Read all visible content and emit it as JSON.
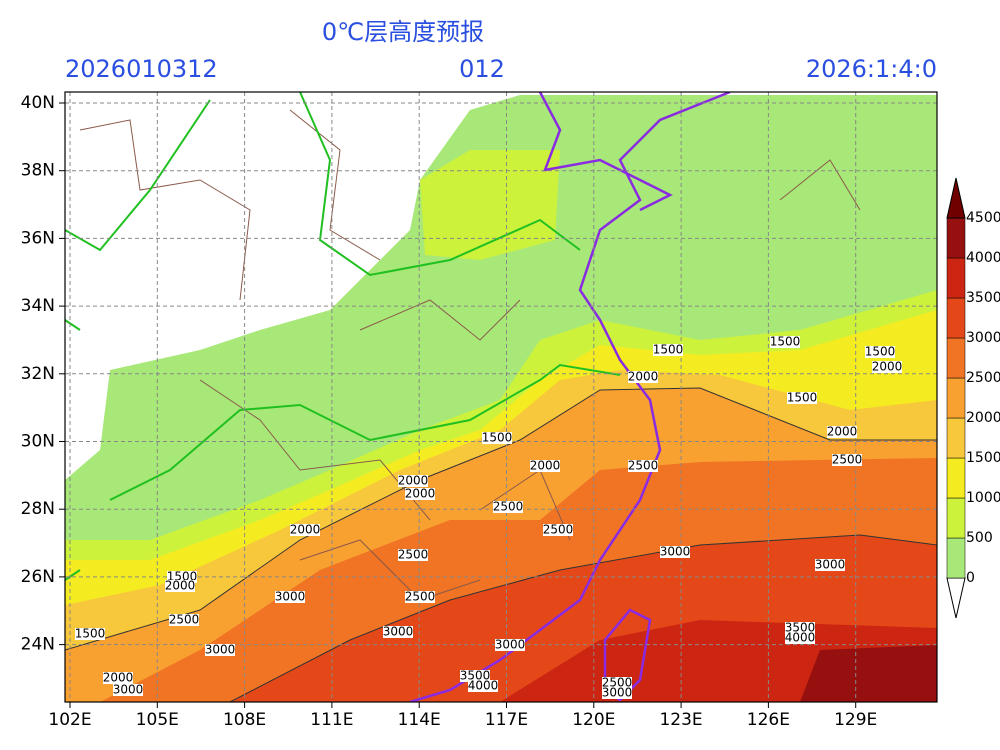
{
  "header": {
    "title": "0℃层高度预报",
    "init_time": "2026010312",
    "forecast_hour": "012",
    "valid_time": "2026:1:4:0"
  },
  "axes": {
    "x_labels": [
      "102E",
      "105E",
      "108E",
      "111E",
      "114E",
      "117E",
      "120E",
      "123E",
      "126E",
      "129E"
    ],
    "y_labels": [
      "40N",
      "38N",
      "36N",
      "34N",
      "32N",
      "30N",
      "28N",
      "26N",
      "24N"
    ]
  },
  "colorbar": {
    "labels": [
      "0",
      "500",
      "1000",
      "1500",
      "2000",
      "2500",
      "3000",
      "3500",
      "4000",
      "4500"
    ]
  },
  "contour_labels": [
    "1500",
    "1500",
    "1500",
    "2000",
    "2000",
    "1500",
    "2000",
    "2500",
    "1500",
    "2000",
    "2500",
    "2000",
    "2000",
    "2500",
    "2500",
    "2000",
    "3000",
    "3000",
    "2500",
    "1500",
    "2000",
    "3000",
    "2500",
    "2500",
    "1500",
    "3000",
    "3000",
    "3000",
    "3500",
    "4000",
    "2000",
    "3000",
    "3500",
    "4000",
    "2500",
    "3000"
  ]
}
